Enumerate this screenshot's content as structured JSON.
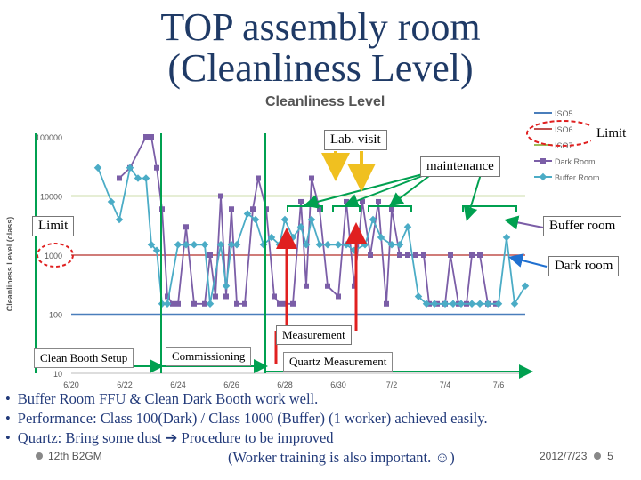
{
  "slide": {
    "title_line1": "TOP assembly room",
    "title_line2": "(Cleanliness Level)"
  },
  "annotations": {
    "lab_visit": "Lab. visit",
    "limit_right": "Limit",
    "maintenance": "maintenance",
    "limit_left": "Limit",
    "buffer_room": "Buffer room",
    "dark_room": "Dark room",
    "measurement": "Measurement",
    "clean_booth_setup": "Clean Booth Setup",
    "commissioning": "Commissioning",
    "quartz_measurement": "Quartz Measurement"
  },
  "bullets": [
    "Buffer Room FFU & Clean Dark Booth work well.",
    "Performance:   Class 100(Dark)  / Class 1000 (Buffer)   (1 worker) achieved easily.",
    "Quartz:  Bring some dust ➔ Procedure to be improved"
  ],
  "bullet_symbol": "•",
  "footer": {
    "left": "12th B2GM",
    "middle": "(Worker training is also important. ☺)",
    "right": "2012/7/23",
    "page": "5"
  },
  "colors": {
    "title": "#1f3a66",
    "iso5": "#4a7ebb",
    "iso6": "#c0504d",
    "iso7": "#9bbb59",
    "dark_room": "#7b5ea7",
    "buffer_room": "#4bacc6",
    "green_marker": "#00a050",
    "red_marker": "#e02020",
    "yellow_marker": "#f0c020"
  },
  "chart_data": {
    "type": "line",
    "title": "Cleanliness Level",
    "ylabel": "Cleanliness Level (class)",
    "xlabel": "",
    "y_scale": "log",
    "ylim": [
      10,
      100000
    ],
    "y_ticks": [
      "100000",
      "10000",
      "1000",
      "100",
      "10"
    ],
    "x_ticks": [
      "6/20",
      "6/22",
      "6/24",
      "6/26",
      "6/28",
      "6/30",
      "7/2",
      "7/4",
      "7/6"
    ],
    "xlim": [
      "6/20",
      "7/7"
    ],
    "reference_lines": [
      {
        "name": "ISO5",
        "value": 100
      },
      {
        "name": "ISO6",
        "value": 1000
      },
      {
        "name": "ISO7",
        "value": 10000
      }
    ],
    "legend": [
      "ISO5",
      "ISO6",
      "ISO7",
      "Dark Room",
      "Buffer Room"
    ],
    "legend_position": "right",
    "series": [
      {
        "name": "Dark Room",
        "points": [
          [
            1.8,
            20000
          ],
          [
            2.2,
            30000
          ],
          [
            2.8,
            100000
          ],
          [
            3.0,
            100000
          ],
          [
            3.2,
            30000
          ],
          [
            3.4,
            6000
          ],
          [
            3.6,
            200
          ],
          [
            3.8,
            150
          ],
          [
            4.0,
            150
          ],
          [
            4.3,
            3000
          ],
          [
            4.6,
            150
          ],
          [
            5.0,
            150
          ],
          [
            5.2,
            1000
          ],
          [
            5.4,
            200
          ],
          [
            5.6,
            10000
          ],
          [
            5.8,
            200
          ],
          [
            6.0,
            6000
          ],
          [
            6.2,
            150
          ],
          [
            6.5,
            150
          ],
          [
            6.8,
            6000
          ],
          [
            7.0,
            20000
          ],
          [
            7.3,
            6000
          ],
          [
            7.6,
            200
          ],
          [
            7.8,
            150
          ],
          [
            8.0,
            150
          ],
          [
            8.3,
            150
          ],
          [
            8.6,
            8000
          ],
          [
            8.8,
            300
          ],
          [
            9.0,
            20000
          ],
          [
            9.3,
            6000
          ],
          [
            9.6,
            300
          ],
          [
            10.0,
            200
          ],
          [
            10.3,
            8000
          ],
          [
            10.6,
            300
          ],
          [
            10.9,
            8000
          ],
          [
            11.2,
            1000
          ],
          [
            11.5,
            8000
          ],
          [
            11.8,
            150
          ],
          [
            12.0,
            6000
          ],
          [
            12.3,
            1000
          ],
          [
            12.6,
            1000
          ],
          [
            12.9,
            1000
          ],
          [
            13.2,
            1000
          ],
          [
            13.4,
            150
          ],
          [
            13.7,
            150
          ],
          [
            14.0,
            150
          ],
          [
            14.2,
            1000
          ],
          [
            14.5,
            150
          ],
          [
            14.8,
            150
          ],
          [
            15.0,
            1000
          ],
          [
            15.3,
            1000
          ],
          [
            15.6,
            150
          ],
          [
            15.9,
            150
          ]
        ]
      },
      {
        "name": "Buffer Room",
        "points": [
          [
            1.0,
            30000
          ],
          [
            1.5,
            8000
          ],
          [
            1.8,
            4000
          ],
          [
            2.2,
            30000
          ],
          [
            2.5,
            20000
          ],
          [
            2.8,
            20000
          ],
          [
            3.0,
            1500
          ],
          [
            3.2,
            1200
          ],
          [
            3.4,
            150
          ],
          [
            3.6,
            150
          ],
          [
            4.0,
            1500
          ],
          [
            4.3,
            1500
          ],
          [
            4.6,
            1500
          ],
          [
            5.0,
            1500
          ],
          [
            5.2,
            150
          ],
          [
            5.6,
            1500
          ],
          [
            5.8,
            300
          ],
          [
            6.0,
            1500
          ],
          [
            6.2,
            1500
          ],
          [
            6.6,
            5000
          ],
          [
            6.9,
            4000
          ],
          [
            7.2,
            1500
          ],
          [
            7.5,
            2000
          ],
          [
            7.8,
            1500
          ],
          [
            8.0,
            4000
          ],
          [
            8.3,
            2000
          ],
          [
            8.6,
            3000
          ],
          [
            8.8,
            1500
          ],
          [
            9.0,
            4000
          ],
          [
            9.3,
            1500
          ],
          [
            9.6,
            1500
          ],
          [
            10.0,
            1500
          ],
          [
            10.3,
            1500
          ],
          [
            10.6,
            1200
          ],
          [
            11.0,
            1500
          ],
          [
            11.3,
            4000
          ],
          [
            11.6,
            2000
          ],
          [
            12.0,
            1500
          ],
          [
            12.3,
            1500
          ],
          [
            12.6,
            3000
          ],
          [
            13.0,
            200
          ],
          [
            13.3,
            150
          ],
          [
            13.6,
            150
          ],
          [
            14.0,
            150
          ],
          [
            14.3,
            150
          ],
          [
            14.6,
            150
          ],
          [
            15.0,
            150
          ],
          [
            15.3,
            150
          ],
          [
            15.6,
            150
          ],
          [
            16.0,
            150
          ],
          [
            16.3,
            2000
          ],
          [
            16.6,
            150
          ],
          [
            17.0,
            300
          ]
        ]
      }
    ]
  }
}
